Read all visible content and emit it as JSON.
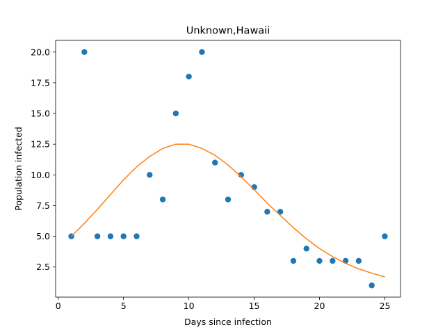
{
  "chart_data": {
    "type": "scatter",
    "title": "Unknown,Hawaii",
    "xlabel": "Days since infection",
    "ylabel": "Population infected",
    "xlim": [
      -0.2,
      26.2
    ],
    "ylim": [
      0.05,
      20.95
    ],
    "xticks": [
      0,
      5,
      10,
      15,
      20,
      25
    ],
    "xtick_labels": [
      "0",
      "5",
      "10",
      "15",
      "20",
      "25"
    ],
    "yticks": [
      2.5,
      5.0,
      7.5,
      10.0,
      12.5,
      15.0,
      17.5,
      20.0
    ],
    "ytick_labels": [
      "2.5",
      "5.0",
      "7.5",
      "10.0",
      "12.5",
      "15.0",
      "17.5",
      "20.0"
    ],
    "grid": false,
    "series": [
      {
        "kind": "scatter",
        "color": "#1f77b4",
        "x": [
          1,
          2,
          3,
          4,
          5,
          6,
          7,
          8,
          9,
          10,
          11,
          12,
          13,
          14,
          15,
          16,
          17,
          18,
          19,
          20,
          21,
          22,
          23,
          24,
          25
        ],
        "y": [
          5,
          20,
          5,
          5,
          5,
          5,
          10,
          8,
          15,
          18,
          20,
          11,
          8,
          10,
          9,
          7,
          7,
          3,
          4,
          3,
          3,
          3,
          3,
          1,
          5
        ]
      },
      {
        "kind": "line",
        "color": "#ff7f0e",
        "x": [
          1,
          2,
          3,
          4,
          5,
          6,
          7,
          8,
          9,
          10,
          11,
          12,
          13,
          14,
          15,
          16,
          17,
          18,
          19,
          20,
          21,
          22,
          23,
          24,
          25
        ],
        "y": [
          5.0,
          6.05,
          7.2,
          8.4,
          9.6,
          10.65,
          11.5,
          12.15,
          12.5,
          12.5,
          12.15,
          11.6,
          10.8,
          9.85,
          8.8,
          7.7,
          6.7,
          5.7,
          4.8,
          4.0,
          3.35,
          2.8,
          2.35,
          2.0,
          1.7
        ]
      }
    ]
  }
}
